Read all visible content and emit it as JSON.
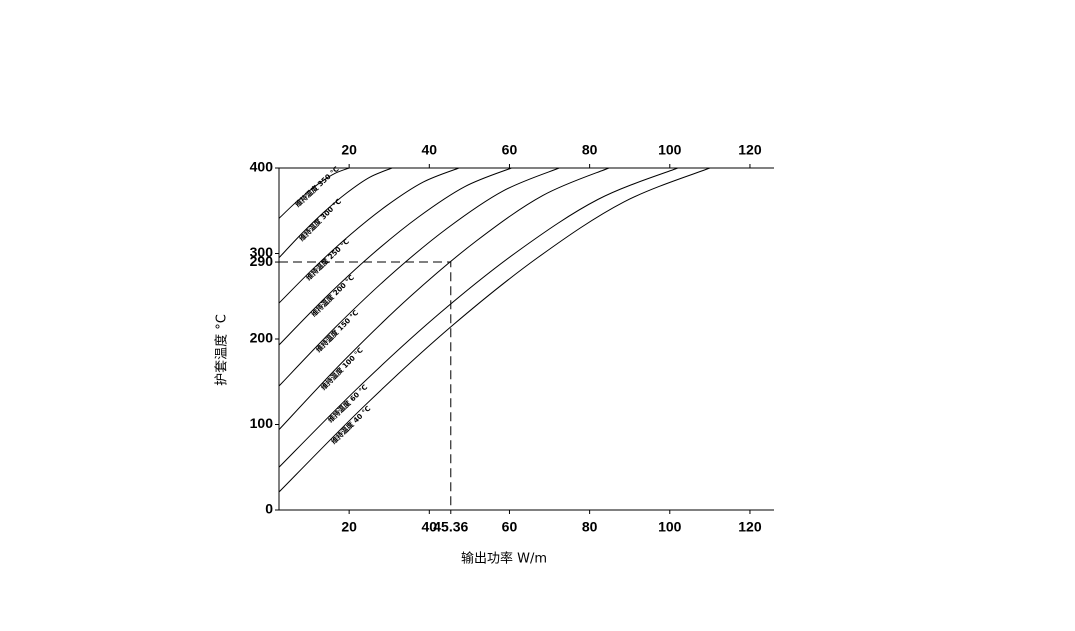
{
  "chart_data": {
    "type": "line",
    "xlabel": "输出功率 W/m",
    "ylabel": "护套温度 °C",
    "xlim": [
      2.5,
      126
    ],
    "ylim": [
      0,
      400
    ],
    "xticks": [
      20,
      40,
      45.36,
      60,
      80,
      100,
      120
    ],
    "x2ticks": [
      20,
      40,
      60,
      80,
      100,
      120
    ],
    "yticks": [
      0,
      100,
      200,
      290,
      300,
      400
    ],
    "reference": {
      "x": 45.36,
      "y": 290
    },
    "color": "#000000",
    "series": [
      {
        "name": "维持温度 350 °C",
        "x": [
          2.5,
          6,
          9.5,
          13,
          16.5,
          20
        ],
        "values": [
          341,
          356.8,
          371.1,
          383.7,
          393.8,
          400
        ]
      },
      {
        "name": "维持温度 300 °C",
        "x": [
          2.5,
          8.14,
          13.78,
          19.42,
          25.06,
          30.7
        ],
        "values": [
          295,
          323.1,
          348.7,
          370.9,
          389.0,
          400
        ]
      },
      {
        "name": "维持温度 250 °C",
        "x": [
          2.5,
          11.48,
          20.46,
          29.44,
          38.42,
          47.4
        ],
        "values": [
          242,
          284.3,
          322.7,
          356.2,
          383.4,
          400
        ]
      },
      {
        "name": "维持温度 200 °C",
        "x": [
          2.5,
          14.1,
          25.7,
          37.3,
          48.9,
          60.5
        ],
        "values": [
          193,
          248.5,
          298.8,
          342.7,
          378.3,
          400
        ]
      },
      {
        "name": "维持温度 150 °C",
        "x": [
          2.5,
          16.48,
          30.46,
          44.44,
          58.42,
          72.4
        ],
        "values": [
          145,
          213.3,
          275.3,
          329.4,
          373.2,
          400
        ]
      },
      {
        "name": "维持温度 100 °C",
        "x": [
          2.5,
          18.96,
          35.42,
          51.88,
          68.34,
          84.8
        ],
        "values": [
          94,
          176.0,
          250.4,
          315.2,
          367.9,
          400
        ]
      },
      {
        "name": "维持温度 60 °C",
        "x": [
          2.5,
          22.4,
          42.3,
          62.2,
          82.1,
          102
        ],
        "values": [
          50,
          143.8,
          228.9,
          303.1,
          363.3,
          400
        ]
      },
      {
        "name": "维持温度 40 °C",
        "x": [
          2.5,
          24,
          45.5,
          67,
          88.5,
          110
        ],
        "values": [
          21,
          122.6,
          214.7,
          295.0,
          360.2,
          400
        ]
      }
    ]
  }
}
